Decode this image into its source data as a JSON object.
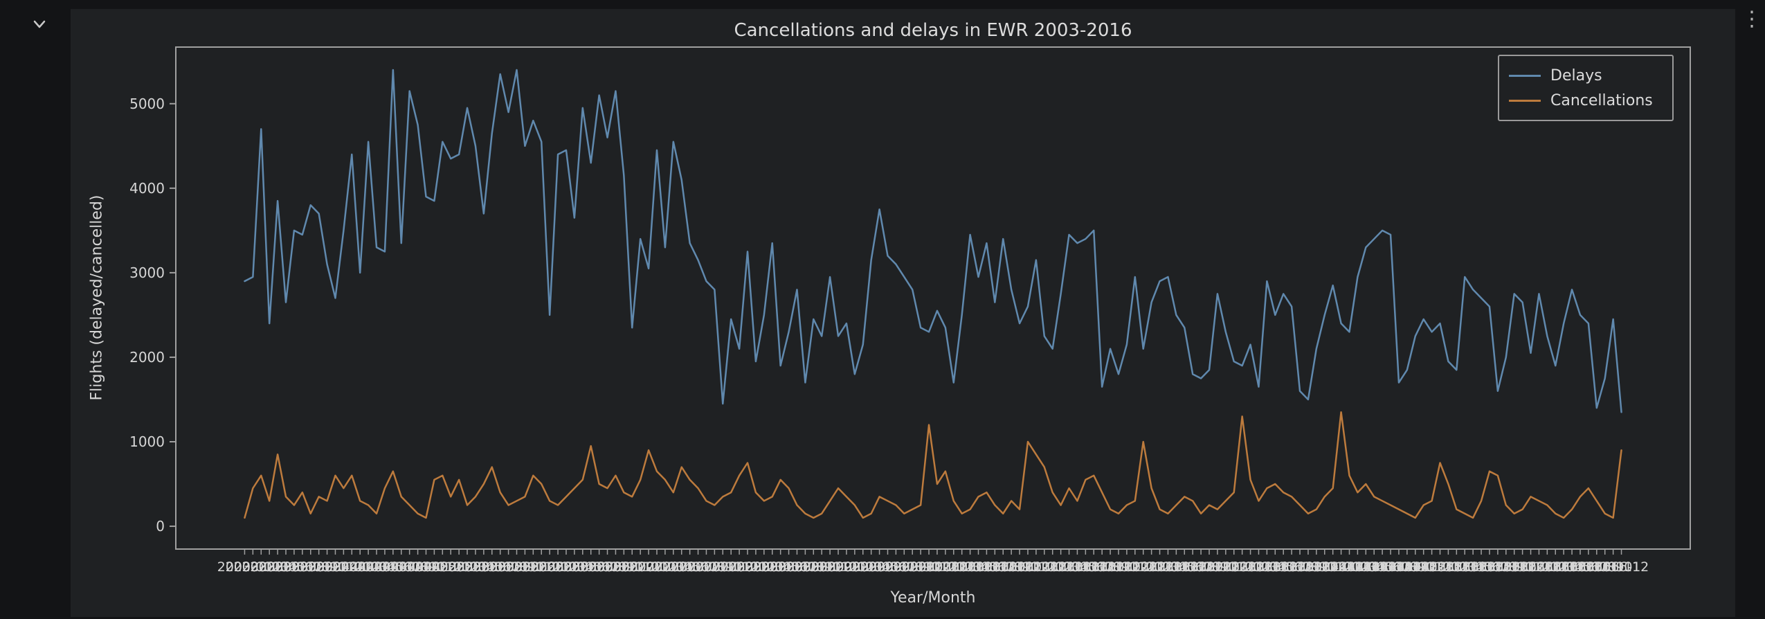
{
  "ui": {
    "collapse_chevron_icon": "chevron-down",
    "kebab_menu_icon": "vertical-ellipsis",
    "kebab_glyph": "⋮"
  },
  "colors": {
    "page_background": "#131416",
    "figure_background": "#1f2123",
    "text": "#d6d6d6",
    "spine": "#a0a0a0"
  },
  "chart_data": {
    "type": "line",
    "title": "Cancellations and delays in EWR 2003-2016",
    "xlabel": "Year/Month",
    "ylabel": "Flights (delayed/cancelled)",
    "legend_position": "upper right",
    "grid": false,
    "yticks": [
      0,
      1000,
      2000,
      3000,
      4000,
      5000
    ],
    "ylim": [
      -270,
      5670
    ],
    "x": [
      "2003-01",
      "2003-02",
      "2003-03",
      "2003-04",
      "2003-05",
      "2003-06",
      "2003-07",
      "2003-08",
      "2003-09",
      "2003-10",
      "2003-11",
      "2003-12",
      "2004-01",
      "2004-02",
      "2004-03",
      "2004-04",
      "2004-05",
      "2004-06",
      "2004-07",
      "2004-08",
      "2004-09",
      "2004-10",
      "2004-11",
      "2004-12",
      "2005-01",
      "2005-02",
      "2005-03",
      "2005-04",
      "2005-05",
      "2005-06",
      "2005-07",
      "2005-08",
      "2005-09",
      "2005-10",
      "2005-11",
      "2005-12",
      "2006-01",
      "2006-02",
      "2006-03",
      "2006-04",
      "2006-05",
      "2006-06",
      "2006-07",
      "2006-08",
      "2006-09",
      "2006-10",
      "2006-11",
      "2006-12",
      "2007-01",
      "2007-02",
      "2007-03",
      "2007-04",
      "2007-05",
      "2007-06",
      "2007-07",
      "2007-08",
      "2007-09",
      "2007-10",
      "2007-11",
      "2007-12",
      "2008-01",
      "2008-02",
      "2008-03",
      "2008-04",
      "2008-05",
      "2008-06",
      "2008-07",
      "2008-08",
      "2008-09",
      "2008-10",
      "2008-11",
      "2008-12",
      "2009-01",
      "2009-02",
      "2009-03",
      "2009-04",
      "2009-05",
      "2009-06",
      "2009-07",
      "2009-08",
      "2009-09",
      "2009-10",
      "2009-11",
      "2009-12",
      "2010-01",
      "2010-02",
      "2010-03",
      "2010-04",
      "2010-05",
      "2010-06",
      "2010-07",
      "2010-08",
      "2010-09",
      "2010-10",
      "2010-11",
      "2010-12",
      "2011-01",
      "2011-02",
      "2011-03",
      "2011-04",
      "2011-05",
      "2011-06",
      "2011-07",
      "2011-08",
      "2011-09",
      "2011-10",
      "2011-11",
      "2011-12",
      "2012-01",
      "2012-02",
      "2012-03",
      "2012-04",
      "2012-05",
      "2012-06",
      "2012-07",
      "2012-08",
      "2012-09",
      "2012-10",
      "2012-11",
      "2012-12",
      "2013-01",
      "2013-02",
      "2013-03",
      "2013-04",
      "2013-05",
      "2013-06",
      "2013-07",
      "2013-08",
      "2013-09",
      "2013-10",
      "2013-11",
      "2013-12",
      "2014-01",
      "2014-02",
      "2014-03",
      "2014-04",
      "2014-05",
      "2014-06",
      "2014-07",
      "2014-08",
      "2014-09",
      "2014-10",
      "2014-11",
      "2014-12",
      "2015-01",
      "2015-02",
      "2015-03",
      "2015-04",
      "2015-05",
      "2015-06",
      "2015-07",
      "2015-08",
      "2015-09",
      "2015-10",
      "2015-11",
      "2015-12",
      "2016-01",
      "2016-02",
      "2016-03",
      "2016-04",
      "2016-05",
      "2016-06",
      "2016-07",
      "2016-08",
      "2016-09",
      "2016-10",
      "2016-11",
      "2016-12"
    ],
    "series": [
      {
        "name": "Delays",
        "color": "#6089ae",
        "values": [
          2900,
          2950,
          4700,
          2400,
          3850,
          2650,
          3500,
          3450,
          3800,
          3700,
          3100,
          2700,
          3500,
          4400,
          3000,
          4550,
          3300,
          3250,
          5400,
          3350,
          5150,
          4750,
          3900,
          3850,
          4550,
          4350,
          4400,
          4950,
          4500,
          3700,
          4650,
          5350,
          4900,
          5400,
          4500,
          4800,
          4550,
          2500,
          4400,
          4450,
          3650,
          4950,
          4300,
          5100,
          4600,
          5150,
          4150,
          2350,
          3400,
          3050,
          4450,
          3300,
          4550,
          4100,
          3350,
          3150,
          2900,
          2800,
          1450,
          2450,
          2100,
          3250,
          1950,
          2500,
          3350,
          1900,
          2300,
          2800,
          1700,
          2450,
          2250,
          2950,
          2250,
          2400,
          1800,
          2150,
          3150,
          3750,
          3200,
          3100,
          2950,
          2800,
          2350,
          2300,
          2550,
          2350,
          1700,
          2500,
          3450,
          2950,
          3350,
          2650,
          3400,
          2800,
          2400,
          2600,
          3150,
          2250,
          2100,
          2750,
          3450,
          3350,
          3400,
          3500,
          1650,
          2100,
          1800,
          2150,
          2950,
          2100,
          2650,
          2900,
          2950,
          2500,
          2350,
          1800,
          1750,
          1850,
          2750,
          2300,
          1950,
          1900,
          2150,
          1650,
          2900,
          2500,
          2750,
          2600,
          1600,
          1500,
          2100,
          2500,
          2850,
          2400,
          2300,
          2950,
          3300,
          3400,
          3500,
          3450,
          1700,
          1850,
          2250,
          2450,
          2300,
          2400,
          1950,
          1850,
          2950,
          2800,
          2700,
          2600,
          1600,
          2000,
          2750,
          2650,
          2050,
          2750,
          2250,
          1900,
          2400,
          2800,
          2500,
          2400,
          1400,
          1750,
          2450,
          1350
        ]
      },
      {
        "name": "Cancellations",
        "color": "#bd7b3d",
        "values": [
          100,
          450,
          600,
          300,
          850,
          350,
          250,
          400,
          150,
          350,
          300,
          600,
          450,
          600,
          300,
          250,
          150,
          450,
          650,
          350,
          250,
          150,
          100,
          550,
          600,
          350,
          550,
          250,
          350,
          500,
          700,
          400,
          250,
          300,
          350,
          600,
          500,
          300,
          250,
          350,
          450,
          550,
          950,
          500,
          450,
          600,
          400,
          350,
          550,
          900,
          650,
          550,
          400,
          700,
          550,
          450,
          300,
          250,
          350,
          400,
          600,
          750,
          400,
          300,
          350,
          550,
          450,
          250,
          150,
          100,
          150,
          300,
          450,
          350,
          250,
          100,
          150,
          350,
          300,
          250,
          150,
          200,
          250,
          1200,
          500,
          650,
          300,
          150,
          200,
          350,
          400,
          250,
          150,
          300,
          200,
          1000,
          850,
          700,
          400,
          250,
          450,
          300,
          550,
          600,
          400,
          200,
          150,
          250,
          300,
          1000,
          450,
          200,
          150,
          250,
          350,
          300,
          150,
          250,
          200,
          300,
          400,
          1300,
          550,
          300,
          450,
          500,
          400,
          350,
          250,
          150,
          200,
          350,
          450,
          1350,
          600,
          400,
          500,
          350,
          300,
          250,
          200,
          150,
          100,
          250,
          300,
          750,
          500,
          200,
          150,
          100,
          300,
          650,
          600,
          250,
          150,
          200,
          350,
          300,
          250,
          150,
          100,
          200,
          350,
          450,
          300,
          150,
          100,
          900
        ]
      }
    ]
  }
}
